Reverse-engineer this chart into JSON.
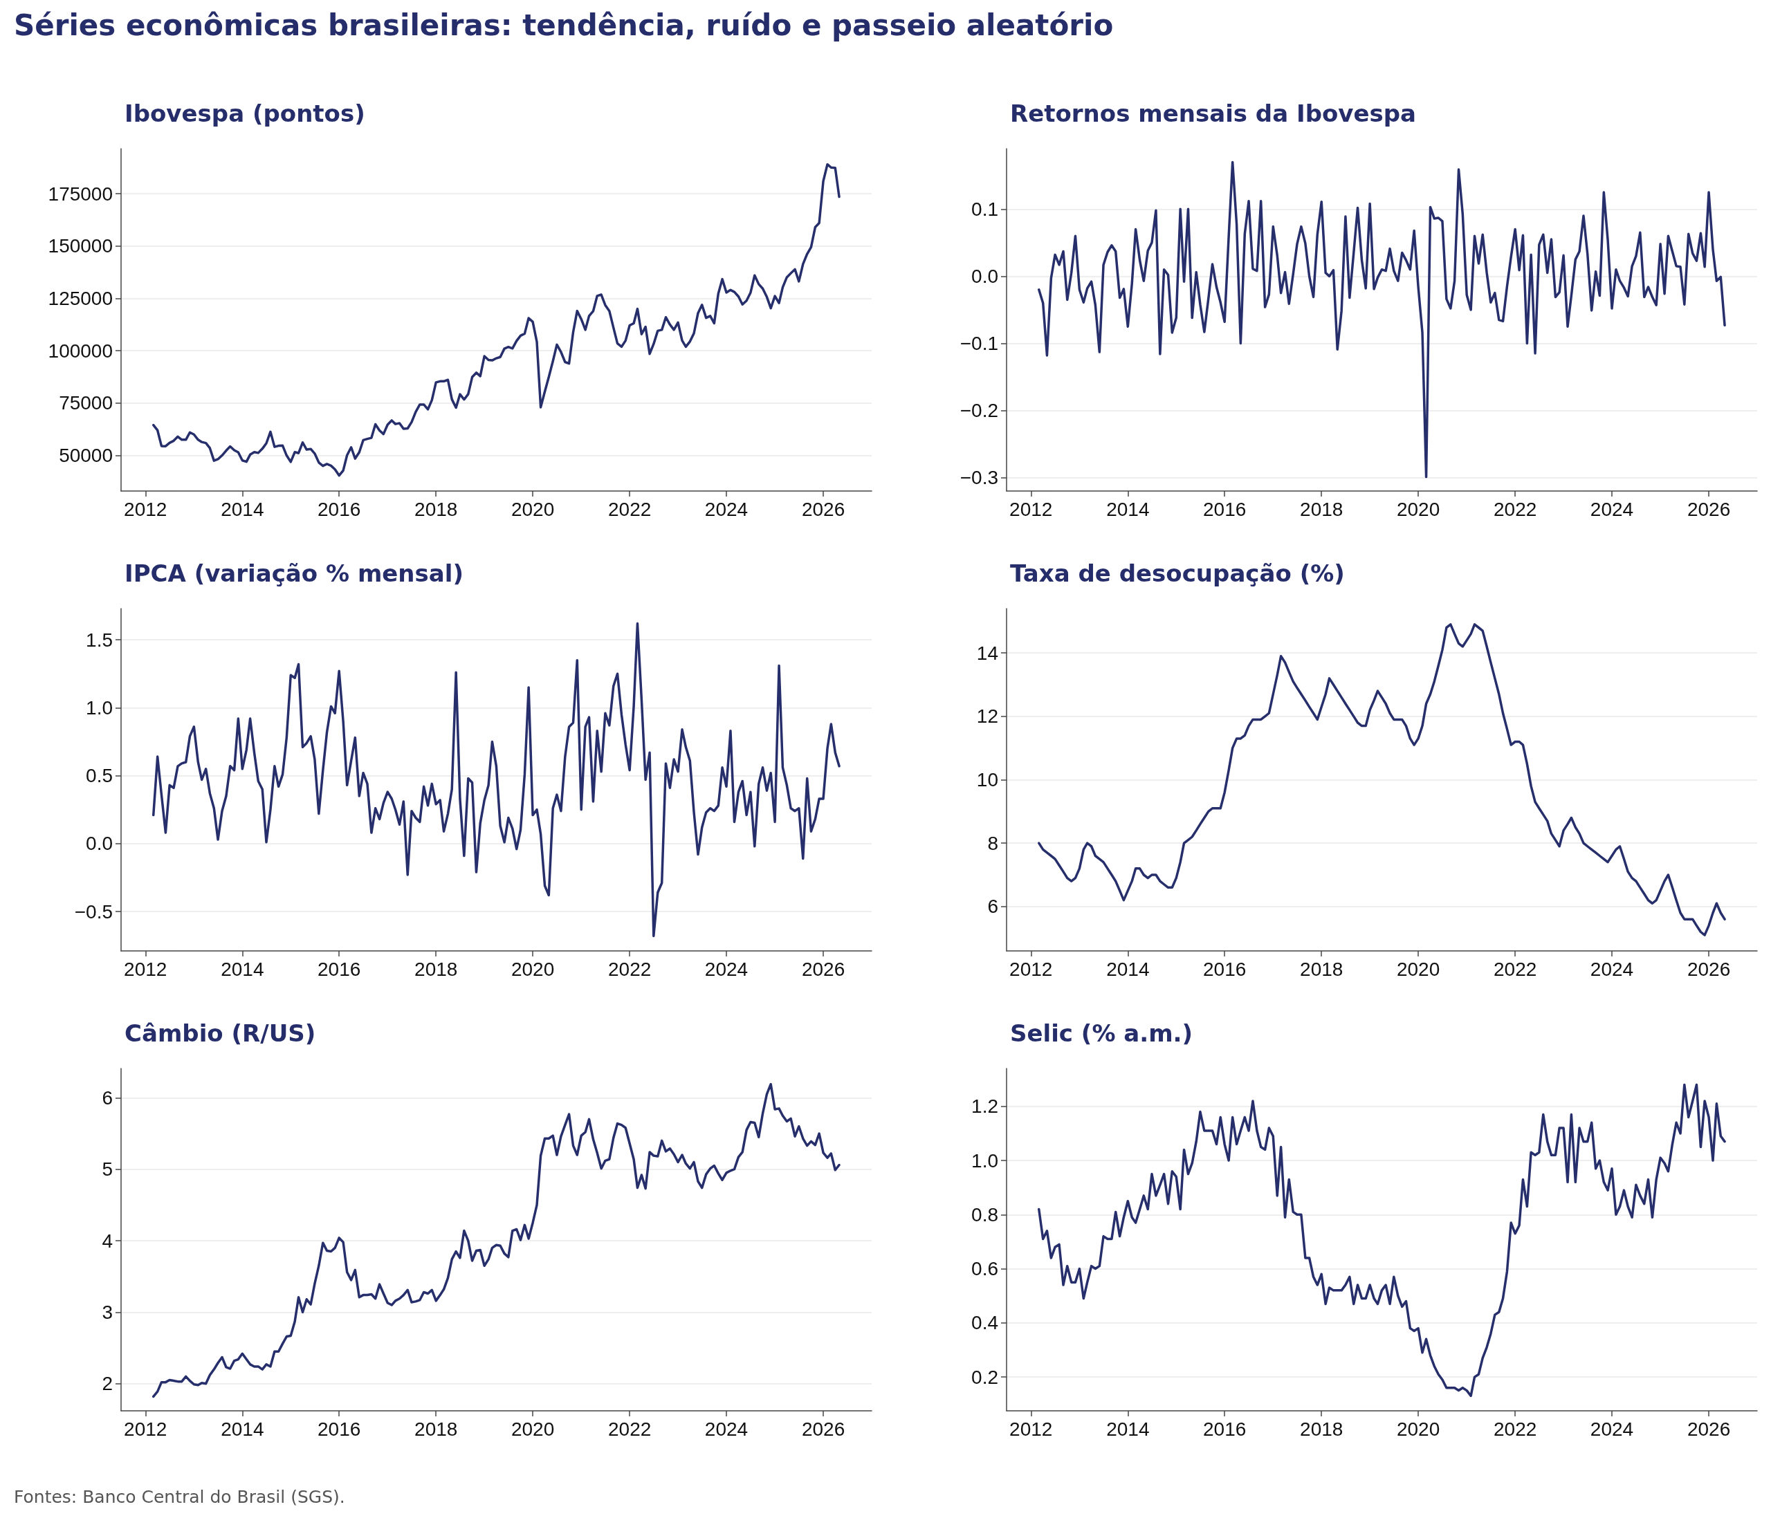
{
  "chart_data": [
    {
      "type": "other",
      "title": "Séries econômicas brasileiras: tendência, ruído e passeio aleatório"
    },
    {
      "type": "line",
      "title": "Ibovespa (pontos)",
      "color": "#262f6b",
      "grid": "y",
      "x": [
        "2012-03",
        "2012-04",
        "2012-05",
        "2012-06",
        "2012-07",
        "2012-08",
        "2012-09",
        "2012-10",
        "2012-11",
        "2012-12",
        "2013-01",
        "2013-02",
        "2013-03",
        "2013-04",
        "2013-05",
        "2013-06",
        "2013-07",
        "2013-08",
        "2013-09",
        "2013-10",
        "2013-11",
        "2013-12",
        "2014-01",
        "2014-02",
        "2014-03",
        "2014-04",
        "2014-05",
        "2014-06",
        "2014-07",
        "2014-08",
        "2014-09",
        "2014-10",
        "2014-11",
        "2014-12",
        "2015-01",
        "2015-02",
        "2015-03",
        "2015-04",
        "2015-05",
        "2015-06",
        "2015-07",
        "2015-08",
        "2015-09",
        "2015-10",
        "2015-11",
        "2015-12",
        "2016-01",
        "2016-02",
        "2016-03",
        "2016-04",
        "2016-05",
        "2016-06",
        "2016-07",
        "2016-08",
        "2016-09",
        "2016-10",
        "2016-11",
        "2016-12",
        "2017-01",
        "2017-02",
        "2017-03",
        "2017-04",
        "2017-05",
        "2017-06",
        "2017-07",
        "2017-08",
        "2017-09",
        "2017-10",
        "2017-11",
        "2017-12",
        "2018-01",
        "2018-02",
        "2018-03",
        "2018-04",
        "2018-05",
        "2018-06",
        "2018-07",
        "2018-08",
        "2018-09",
        "2018-10",
        "2018-11",
        "2018-12",
        "2019-01",
        "2019-02",
        "2019-03",
        "2019-04",
        "2019-05",
        "2019-06",
        "2019-07",
        "2019-08",
        "2019-09",
        "2019-10",
        "2019-11",
        "2019-12",
        "2020-01",
        "2020-02",
        "2020-03",
        "2020-04",
        "2020-05",
        "2020-06",
        "2020-07",
        "2020-08",
        "2020-09",
        "2020-10",
        "2020-11",
        "2020-12",
        "2021-01",
        "2021-02",
        "2021-03",
        "2021-04",
        "2021-05",
        "2021-06",
        "2021-07",
        "2021-08",
        "2021-09",
        "2021-10",
        "2021-11",
        "2021-12",
        "2022-01",
        "2022-02",
        "2022-03",
        "2022-04",
        "2022-05",
        "2022-06",
        "2022-07",
        "2022-08",
        "2022-09",
        "2022-10",
        "2022-11",
        "2022-12",
        "2023-01",
        "2023-02",
        "2023-03",
        "2023-04",
        "2023-05",
        "2023-06",
        "2023-07",
        "2023-08",
        "2023-09",
        "2023-10",
        "2023-11",
        "2023-12",
        "2024-01",
        "2024-02",
        "2024-03",
        "2024-04",
        "2024-05",
        "2024-06",
        "2024-07",
        "2024-08",
        "2024-09",
        "2024-10",
        "2024-11",
        "2024-12",
        "2025-01",
        "2025-02",
        "2025-03",
        "2025-04",
        "2025-05",
        "2025-06",
        "2025-07",
        "2025-08",
        "2025-09",
        "2025-10",
        "2025-11",
        "2025-12",
        "2026-01",
        "2026-02",
        "2026-03",
        "2026-04",
        "2026-05"
      ],
      "values": [
        64500,
        62000,
        54500,
        54400,
        56000,
        57000,
        59000,
        57500,
        57500,
        61000,
        60000,
        57500,
        56400,
        55900,
        53500,
        47500,
        48200,
        50000,
        52300,
        54300,
        52500,
        51500,
        47600,
        47000,
        50400,
        51600,
        51200,
        53200,
        55800,
        61300,
        54100,
        54600,
        54700,
        50000,
        46900,
        51600,
        51100,
        56200,
        52800,
        53100,
        50900,
        46600,
        45000,
        45900,
        45100,
        43300,
        40400,
        42800,
        50100,
        53900,
        48500,
        51500,
        57300,
        57900,
        58400,
        64900,
        61900,
        60200,
        64700,
        66700,
        65000,
        65400,
        62700,
        62900,
        65900,
        70800,
        74300,
        74300,
        72000,
        76400,
        84900,
        85400,
        85400,
        86100,
        76800,
        72800,
        79200,
        76700,
        79300,
        87400,
        89500,
        87900,
        97400,
        95600,
        95400,
        96400,
        97000,
        101000,
        101800,
        101100,
        104700,
        107200,
        108200,
        115600,
        113800,
        104200,
        73000,
        80500,
        87400,
        95000,
        102900,
        99400,
        94600,
        93900,
        108900,
        119000,
        115100,
        110000,
        116600,
        118900,
        126200,
        126800,
        121800,
        119000,
        111000,
        103500,
        101900,
        104800,
        112100,
        113100,
        120000,
        107900,
        111400,
        98500,
        103200,
        109500,
        110000,
        116000,
        112500,
        110000,
        113500,
        104900,
        101900,
        104400,
        108300,
        118000,
        121900,
        115700,
        116600,
        113100,
        127300,
        134200,
        127800,
        129000,
        128100,
        125900,
        122100,
        123900,
        127700,
        136000,
        131800,
        129700,
        125700,
        120300,
        126100,
        122800,
        130300,
        135100,
        137000,
        138900,
        133100,
        141400,
        146200,
        149500,
        159000,
        161000,
        181000,
        189000,
        187500,
        187300,
        173500
      ],
      "xlim": [
        "2011-07",
        "2027-01"
      ],
      "xticks": [
        "2012",
        "2014",
        "2016",
        "2018",
        "2020",
        "2022",
        "2024",
        "2026"
      ],
      "ylim": [
        33000,
        196500
      ],
      "yticks": [
        50000,
        75000,
        100000,
        125000,
        150000,
        175000
      ]
    },
    {
      "type": "line",
      "title": "Retornos mensais da Ibovespa",
      "color": "#262f6b",
      "grid": "y",
      "x": [
        "2012-03",
        "2012-04",
        "2012-05",
        "2012-06",
        "2012-07",
        "2012-08",
        "2012-09",
        "2012-10",
        "2012-11",
        "2012-12",
        "2013-01",
        "2013-02",
        "2013-03",
        "2013-04",
        "2013-05",
        "2013-06",
        "2013-07",
        "2013-08",
        "2013-09",
        "2013-10",
        "2013-11",
        "2013-12",
        "2014-01",
        "2014-02",
        "2014-03",
        "2014-04",
        "2014-05",
        "2014-06",
        "2014-07",
        "2014-08",
        "2014-09",
        "2014-10",
        "2014-11",
        "2014-12",
        "2015-01",
        "2015-02",
        "2015-03",
        "2015-04",
        "2015-05",
        "2015-06",
        "2015-07",
        "2015-08",
        "2015-09",
        "2015-10",
        "2015-11",
        "2015-12",
        "2016-01",
        "2016-02",
        "2016-03",
        "2016-04",
        "2016-05",
        "2016-06",
        "2016-07",
        "2016-08",
        "2016-09",
        "2016-10",
        "2016-11",
        "2016-12",
        "2017-01",
        "2017-02",
        "2017-03",
        "2017-04",
        "2017-05",
        "2017-06",
        "2017-07",
        "2017-08",
        "2017-09",
        "2017-10",
        "2017-11",
        "2017-12",
        "2018-01",
        "2018-02",
        "2018-03",
        "2018-04",
        "2018-05",
        "2018-06",
        "2018-07",
        "2018-08",
        "2018-09",
        "2018-10",
        "2018-11",
        "2018-12",
        "2019-01",
        "2019-02",
        "2019-03",
        "2019-04",
        "2019-05",
        "2019-06",
        "2019-07",
        "2019-08",
        "2019-09",
        "2019-10",
        "2019-11",
        "2019-12",
        "2020-01",
        "2020-02",
        "2020-03",
        "2020-04",
        "2020-05",
        "2020-06",
        "2020-07",
        "2020-08",
        "2020-09",
        "2020-10",
        "2020-11",
        "2020-12",
        "2021-01",
        "2021-02",
        "2021-03",
        "2021-04",
        "2021-05",
        "2021-06",
        "2021-07",
        "2021-08",
        "2021-09",
        "2021-10",
        "2021-11",
        "2021-12",
        "2022-01",
        "2022-02",
        "2022-03",
        "2022-04",
        "2022-05",
        "2022-06",
        "2022-07",
        "2022-08",
        "2022-09",
        "2022-10",
        "2022-11",
        "2022-12",
        "2023-01",
        "2023-02",
        "2023-03",
        "2023-04",
        "2023-05",
        "2023-06",
        "2023-07",
        "2023-08",
        "2023-09",
        "2023-10",
        "2023-11",
        "2023-12",
        "2024-01",
        "2024-02",
        "2024-03",
        "2024-04",
        "2024-05",
        "2024-06",
        "2024-07",
        "2024-08",
        "2024-09",
        "2024-10",
        "2024-11",
        "2024-12",
        "2025-01",
        "2025-02",
        "2025-03",
        "2025-04",
        "2025-05",
        "2025-06",
        "2025-07",
        "2025-08",
        "2025-09",
        "2025-10",
        "2025-11",
        "2025-12",
        "2026-01",
        "2026-02",
        "2026-03",
        "2026-04",
        "2026-05"
      ],
      "values": [
        -0.02,
        -0.04,
        -0.118,
        -0.003,
        0.032,
        0.017,
        0.037,
        -0.035,
        0.005,
        0.06,
        -0.02,
        -0.039,
        -0.018,
        -0.008,
        -0.043,
        -0.113,
        0.017,
        0.036,
        0.046,
        0.037,
        -0.032,
        -0.019,
        -0.075,
        -0.011,
        0.07,
        0.024,
        -0.007,
        0.038,
        0.05,
        0.098,
        -0.116,
        0.01,
        0.002,
        -0.084,
        -0.062,
        0.1,
        -0.008,
        0.1,
        -0.062,
        0.006,
        -0.042,
        -0.083,
        -0.033,
        0.018,
        -0.016,
        -0.039,
        -0.068,
        0.059,
        0.17,
        0.077,
        -0.1,
        0.063,
        0.112,
        0.011,
        0.008,
        0.112,
        -0.046,
        -0.027,
        0.074,
        0.031,
        -0.025,
        0.006,
        -0.041,
        0.003,
        0.048,
        0.074,
        0.049,
        0,
        -0.031,
        0.062,
        0.111,
        0.005,
        0,
        0.009,
        -0.109,
        -0.052,
        0.089,
        -0.032,
        0.035,
        0.102,
        0.024,
        -0.018,
        0.108,
        -0.019,
        -0.002,
        0.01,
        0.008,
        0.041,
        0.008,
        -0.007,
        0.035,
        0.024,
        0.01,
        0.068,
        -0.016,
        -0.084,
        -0.299,
        0.103,
        0.086,
        0.087,
        0.082,
        -0.034,
        -0.048,
        -0.007,
        0.159,
        0.093,
        -0.028,
        -0.05,
        0.06,
        0.019,
        0.062,
        0.005,
        -0.039,
        -0.025,
        -0.065,
        -0.067,
        -0.015,
        0.029,
        0.07,
        0.009,
        0.061,
        -0.1,
        0.032,
        -0.115,
        0.047,
        0.062,
        0.005,
        0.055,
        -0.031,
        -0.024,
        0.031,
        -0.075,
        -0.029,
        0.025,
        0.037,
        0.09,
        0.033,
        -0.051,
        0.007,
        -0.029,
        0.125,
        0.054,
        -0.048,
        0.01,
        -0.007,
        -0.017,
        -0.03,
        0.015,
        0.03,
        0.065,
        -0.031,
        -0.016,
        -0.031,
        -0.043,
        0.048,
        -0.026,
        0.06,
        0.037,
        0.015,
        0.014,
        -0.042,
        0.063,
        0.034,
        0.023,
        0.064,
        0.014,
        0.125,
        0.04,
        -0.007,
        -0.001,
        -0.073
      ],
      "xlim": [
        "2011-07",
        "2027-01"
      ],
      "xticks": [
        "2012",
        "2014",
        "2016",
        "2018",
        "2020",
        "2022",
        "2024",
        "2026"
      ],
      "ylim": [
        -0.32,
        0.19
      ],
      "yticks": [
        {
          "value": -0.3,
          "label": "−0.3"
        },
        {
          "value": -0.2,
          "label": "−0.2"
        },
        {
          "value": -0.1,
          "label": "−0.1"
        },
        {
          "value": 0,
          "label": "0.0"
        },
        0.1
      ]
    },
    {
      "type": "line",
      "title": "IPCA (variação % mensal)",
      "color": "#262f6b",
      "grid": "y",
      "x": [
        "2012-03",
        "2012-04",
        "2012-05",
        "2012-06",
        "2012-07",
        "2012-08",
        "2012-09",
        "2012-10",
        "2012-11",
        "2012-12",
        "2013-01",
        "2013-02",
        "2013-03",
        "2013-04",
        "2013-05",
        "2013-06",
        "2013-07",
        "2013-08",
        "2013-09",
        "2013-10",
        "2013-11",
        "2013-12",
        "2014-01",
        "2014-02",
        "2014-03",
        "2014-04",
        "2014-05",
        "2014-06",
        "2014-07",
        "2014-08",
        "2014-09",
        "2014-10",
        "2014-11",
        "2014-12",
        "2015-01",
        "2015-02",
        "2015-03",
        "2015-04",
        "2015-05",
        "2015-06",
        "2015-07",
        "2015-08",
        "2015-09",
        "2015-10",
        "2015-11",
        "2015-12",
        "2016-01",
        "2016-02",
        "2016-03",
        "2016-04",
        "2016-05",
        "2016-06",
        "2016-07",
        "2016-08",
        "2016-09",
        "2016-10",
        "2016-11",
        "2016-12",
        "2017-01",
        "2017-02",
        "2017-03",
        "2017-04",
        "2017-05",
        "2017-06",
        "2017-07",
        "2017-08",
        "2017-09",
        "2017-10",
        "2017-11",
        "2017-12",
        "2018-01",
        "2018-02",
        "2018-03",
        "2018-04",
        "2018-05",
        "2018-06",
        "2018-07",
        "2018-08",
        "2018-09",
        "2018-10",
        "2018-11",
        "2018-12",
        "2019-01",
        "2019-02",
        "2019-03",
        "2019-04",
        "2019-05",
        "2019-06",
        "2019-07",
        "2019-08",
        "2019-09",
        "2019-10",
        "2019-11",
        "2019-12",
        "2020-01",
        "2020-02",
        "2020-03",
        "2020-04",
        "2020-05",
        "2020-06",
        "2020-07",
        "2020-08",
        "2020-09",
        "2020-10",
        "2020-11",
        "2020-12",
        "2021-01",
        "2021-02",
        "2021-03",
        "2021-04",
        "2021-05",
        "2021-06",
        "2021-07",
        "2021-08",
        "2021-09",
        "2021-10",
        "2021-11",
        "2021-12",
        "2022-01",
        "2022-02",
        "2022-03",
        "2022-04",
        "2022-05",
        "2022-06",
        "2022-07",
        "2022-08",
        "2022-09",
        "2022-10",
        "2022-11",
        "2022-12",
        "2023-01",
        "2023-02",
        "2023-03",
        "2023-04",
        "2023-05",
        "2023-06",
        "2023-07",
        "2023-08",
        "2023-09",
        "2023-10",
        "2023-11",
        "2023-12",
        "2024-01",
        "2024-02",
        "2024-03",
        "2024-04",
        "2024-05",
        "2024-06",
        "2024-07",
        "2024-08",
        "2024-09",
        "2024-10",
        "2024-11",
        "2024-12",
        "2025-01",
        "2025-02",
        "2025-03",
        "2025-04",
        "2025-05",
        "2025-06",
        "2025-07",
        "2025-08",
        "2025-09",
        "2025-10",
        "2025-11",
        "2025-12",
        "2026-01",
        "2026-02",
        "2026-03",
        "2026-04",
        "2026-05"
      ],
      "values": [
        0.21,
        0.64,
        0.36,
        0.08,
        0.43,
        0.41,
        0.57,
        0.59,
        0.6,
        0.79,
        0.86,
        0.6,
        0.47,
        0.55,
        0.37,
        0.26,
        0.03,
        0.24,
        0.35,
        0.57,
        0.54,
        0.92,
        0.55,
        0.69,
        0.92,
        0.67,
        0.46,
        0.4,
        0.01,
        0.25,
        0.57,
        0.42,
        0.51,
        0.78,
        1.24,
        1.22,
        1.32,
        0.71,
        0.74,
        0.79,
        0.62,
        0.22,
        0.54,
        0.82,
        1.01,
        0.96,
        1.27,
        0.9,
        0.43,
        0.61,
        0.78,
        0.35,
        0.52,
        0.44,
        0.08,
        0.26,
        0.18,
        0.3,
        0.38,
        0.33,
        0.25,
        0.14,
        0.31,
        -0.23,
        0.24,
        0.19,
        0.16,
        0.42,
        0.28,
        0.44,
        0.29,
        0.32,
        0.09,
        0.22,
        0.4,
        1.26,
        0.33,
        -0.09,
        0.48,
        0.45,
        -0.21,
        0.15,
        0.32,
        0.43,
        0.75,
        0.57,
        0.13,
        0.01,
        0.19,
        0.11,
        -0.04,
        0.1,
        0.51,
        1.15,
        0.21,
        0.25,
        0.07,
        -0.31,
        -0.38,
        0.26,
        0.36,
        0.24,
        0.64,
        0.86,
        0.89,
        1.35,
        0.25,
        0.86,
        0.93,
        0.31,
        0.83,
        0.53,
        0.96,
        0.87,
        1.16,
        1.25,
        0.95,
        0.73,
        0.54,
        1.01,
        1.62,
        1.06,
        0.47,
        0.67,
        -0.68,
        -0.36,
        -0.29,
        0.59,
        0.41,
        0.62,
        0.53,
        0.84,
        0.71,
        0.61,
        0.23,
        -0.08,
        0.12,
        0.23,
        0.26,
        0.24,
        0.28,
        0.56,
        0.42,
        0.83,
        0.16,
        0.38,
        0.46,
        0.21,
        0.38,
        -0.02,
        0.44,
        0.56,
        0.39,
        0.52,
        0.16,
        1.31,
        0.56,
        0.43,
        0.26,
        0.24,
        0.26,
        -0.11,
        0.48,
        0.09,
        0.18,
        0.33,
        0.33,
        0.7,
        0.88,
        0.67,
        0.57
      ],
      "xlim": [
        "2011-07",
        "2027-01"
      ],
      "xticks": [
        "2012",
        "2014",
        "2016",
        "2018",
        "2020",
        "2022",
        "2024",
        "2026"
      ],
      "ylim": [
        -0.79,
        1.73
      ],
      "yticks": [
        {
          "value": -0.5,
          "label": "−0.5"
        },
        {
          "value": 0,
          "label": "0.0"
        },
        0.5,
        {
          "value": 1,
          "label": "1.0"
        },
        1.5
      ]
    },
    {
      "type": "line",
      "title": "Taxa de desocupação (%)",
      "color": "#262f6b",
      "grid": "y",
      "x": [
        "2012-03",
        "2012-04",
        "2012-05",
        "2012-06",
        "2012-07",
        "2012-08",
        "2012-09",
        "2012-10",
        "2012-11",
        "2012-12",
        "2013-01",
        "2013-02",
        "2013-03",
        "2013-04",
        "2013-05",
        "2013-06",
        "2013-07",
        "2013-08",
        "2013-09",
        "2013-10",
        "2013-11",
        "2013-12",
        "2014-01",
        "2014-02",
        "2014-03",
        "2014-04",
        "2014-05",
        "2014-06",
        "2014-07",
        "2014-08",
        "2014-09",
        "2014-10",
        "2014-11",
        "2014-12",
        "2015-01",
        "2015-02",
        "2015-03",
        "2015-04",
        "2015-05",
        "2015-06",
        "2015-07",
        "2015-08",
        "2015-09",
        "2015-10",
        "2015-11",
        "2015-12",
        "2016-01",
        "2016-02",
        "2016-03",
        "2016-04",
        "2016-05",
        "2016-06",
        "2016-07",
        "2016-08",
        "2016-09",
        "2016-10",
        "2016-11",
        "2016-12",
        "2017-01",
        "2017-02",
        "2017-03",
        "2017-04",
        "2017-05",
        "2017-06",
        "2017-07",
        "2017-08",
        "2017-09",
        "2017-10",
        "2017-11",
        "2017-12",
        "2018-01",
        "2018-02",
        "2018-03",
        "2018-04",
        "2018-05",
        "2018-06",
        "2018-07",
        "2018-08",
        "2018-09",
        "2018-10",
        "2018-11",
        "2018-12",
        "2019-01",
        "2019-02",
        "2019-03",
        "2019-04",
        "2019-05",
        "2019-06",
        "2019-07",
        "2019-08",
        "2019-09",
        "2019-10",
        "2019-11",
        "2019-12",
        "2020-01",
        "2020-02",
        "2020-03",
        "2020-04",
        "2020-05",
        "2020-06",
        "2020-07",
        "2020-08",
        "2020-09",
        "2020-10",
        "2020-11",
        "2020-12",
        "2021-01",
        "2021-02",
        "2021-03",
        "2021-04",
        "2021-05",
        "2021-06",
        "2021-07",
        "2021-08",
        "2021-09",
        "2021-10",
        "2021-11",
        "2021-12",
        "2022-01",
        "2022-02",
        "2022-03",
        "2022-04",
        "2022-05",
        "2022-06",
        "2022-07",
        "2022-08",
        "2022-09",
        "2022-10",
        "2022-11",
        "2022-12",
        "2023-01",
        "2023-02",
        "2023-03",
        "2023-04",
        "2023-05",
        "2023-06",
        "2023-07",
        "2023-08",
        "2023-09",
        "2023-10",
        "2023-11",
        "2023-12",
        "2024-01",
        "2024-02",
        "2024-03",
        "2024-04",
        "2024-05",
        "2024-06",
        "2024-07",
        "2024-08",
        "2024-09",
        "2024-10",
        "2024-11",
        "2024-12",
        "2025-01",
        "2025-02",
        "2025-03",
        "2025-04",
        "2025-05",
        "2025-06",
        "2025-07",
        "2025-08",
        "2025-09",
        "2025-10",
        "2025-11",
        "2025-12",
        "2026-01",
        "2026-02",
        "2026-03",
        "2026-04",
        "2026-05"
      ],
      "values": [
        8.0,
        7.8,
        7.7,
        7.6,
        7.5,
        7.3,
        7.1,
        6.9,
        6.8,
        6.9,
        7.2,
        7.8,
        8.0,
        7.9,
        7.6,
        7.5,
        7.4,
        7.2,
        7.0,
        6.8,
        6.5,
        6.2,
        6.5,
        6.8,
        7.2,
        7.2,
        7.0,
        6.9,
        7.0,
        7.0,
        6.8,
        6.7,
        6.6,
        6.6,
        6.9,
        7.4,
        8.0,
        8.1,
        8.2,
        8.4,
        8.6,
        8.8,
        9.0,
        9.1,
        9.1,
        9.1,
        9.6,
        10.3,
        11.0,
        11.3,
        11.3,
        11.4,
        11.7,
        11.9,
        11.9,
        11.9,
        12.0,
        12.1,
        12.7,
        13.3,
        13.9,
        13.7,
        13.4,
        13.1,
        12.9,
        12.7,
        12.5,
        12.3,
        12.1,
        11.9,
        12.3,
        12.7,
        13.2,
        13.0,
        12.8,
        12.6,
        12.4,
        12.2,
        12.0,
        11.8,
        11.7,
        11.7,
        12.2,
        12.5,
        12.8,
        12.6,
        12.4,
        12.1,
        11.9,
        11.9,
        11.9,
        11.7,
        11.3,
        11.1,
        11.3,
        11.7,
        12.4,
        12.7,
        13.1,
        13.6,
        14.1,
        14.8,
        14.9,
        14.6,
        14.3,
        14.2,
        14.4,
        14.6,
        14.9,
        14.8,
        14.7,
        14.2,
        13.7,
        13.2,
        12.7,
        12.1,
        11.6,
        11.1,
        11.2,
        11.2,
        11.1,
        10.5,
        9.8,
        9.3,
        9.1,
        8.9,
        8.7,
        8.3,
        8.1,
        7.9,
        8.4,
        8.6,
        8.8,
        8.5,
        8.3,
        8.0,
        7.9,
        7.8,
        7.7,
        7.6,
        7.5,
        7.4,
        7.6,
        7.8,
        7.9,
        7.5,
        7.1,
        6.9,
        6.8,
        6.6,
        6.4,
        6.2,
        6.1,
        6.2,
        6.5,
        6.8,
        7.0,
        6.6,
        6.2,
        5.8,
        5.6,
        5.6,
        5.6,
        5.4,
        5.2,
        5.1,
        5.4,
        5.8,
        6.1,
        5.8,
        5.6
      ],
      "xlim": [
        "2011-07",
        "2027-01"
      ],
      "xticks": [
        "2012",
        "2014",
        "2016",
        "2018",
        "2020",
        "2022",
        "2024",
        "2026"
      ],
      "ylim": [
        4.6,
        15.4
      ],
      "yticks": [
        6,
        8,
        10,
        12,
        14
      ]
    },
    {
      "type": "line",
      "title": "Câmbio (R/US)",
      "color": "#262f6b",
      "grid": "y",
      "x": [
        "2012-03",
        "2012-04",
        "2012-05",
        "2012-06",
        "2012-07",
        "2012-08",
        "2012-09",
        "2012-10",
        "2012-11",
        "2012-12",
        "2013-01",
        "2013-02",
        "2013-03",
        "2013-04",
        "2013-05",
        "2013-06",
        "2013-07",
        "2013-08",
        "2013-09",
        "2013-10",
        "2013-11",
        "2013-12",
        "2014-01",
        "2014-02",
        "2014-03",
        "2014-04",
        "2014-05",
        "2014-06",
        "2014-07",
        "2014-08",
        "2014-09",
        "2014-10",
        "2014-11",
        "2014-12",
        "2015-01",
        "2015-02",
        "2015-03",
        "2015-04",
        "2015-05",
        "2015-06",
        "2015-07",
        "2015-08",
        "2015-09",
        "2015-10",
        "2015-11",
        "2015-12",
        "2016-01",
        "2016-02",
        "2016-03",
        "2016-04",
        "2016-05",
        "2016-06",
        "2016-07",
        "2016-08",
        "2016-09",
        "2016-10",
        "2016-11",
        "2016-12",
        "2017-01",
        "2017-02",
        "2017-03",
        "2017-04",
        "2017-05",
        "2017-06",
        "2017-07",
        "2017-08",
        "2017-09",
        "2017-10",
        "2017-11",
        "2017-12",
        "2018-01",
        "2018-02",
        "2018-03",
        "2018-04",
        "2018-05",
        "2018-06",
        "2018-07",
        "2018-08",
        "2018-09",
        "2018-10",
        "2018-11",
        "2018-12",
        "2019-01",
        "2019-02",
        "2019-03",
        "2019-04",
        "2019-05",
        "2019-06",
        "2019-07",
        "2019-08",
        "2019-09",
        "2019-10",
        "2019-11",
        "2019-12",
        "2020-01",
        "2020-02",
        "2020-03",
        "2020-04",
        "2020-05",
        "2020-06",
        "2020-07",
        "2020-08",
        "2020-09",
        "2020-10",
        "2020-11",
        "2020-12",
        "2021-01",
        "2021-02",
        "2021-03",
        "2021-04",
        "2021-05",
        "2021-06",
        "2021-07",
        "2021-08",
        "2021-09",
        "2021-10",
        "2021-11",
        "2021-12",
        "2022-01",
        "2022-02",
        "2022-03",
        "2022-04",
        "2022-05",
        "2022-06",
        "2022-07",
        "2022-08",
        "2022-09",
        "2022-10",
        "2022-11",
        "2022-12",
        "2023-01",
        "2023-02",
        "2023-03",
        "2023-04",
        "2023-05",
        "2023-06",
        "2023-07",
        "2023-08",
        "2023-09",
        "2023-10",
        "2023-11",
        "2023-12",
        "2024-01",
        "2024-02",
        "2024-03",
        "2024-04",
        "2024-05",
        "2024-06",
        "2024-07",
        "2024-08",
        "2024-09",
        "2024-10",
        "2024-11",
        "2024-12",
        "2025-01",
        "2025-02",
        "2025-03",
        "2025-04",
        "2025-05",
        "2025-06",
        "2025-07",
        "2025-08",
        "2025-09",
        "2025-10",
        "2025-11",
        "2025-12",
        "2026-01",
        "2026-02",
        "2026-03",
        "2026-04",
        "2026-05"
      ],
      "values": [
        1.82,
        1.89,
        2.02,
        2.02,
        2.05,
        2.04,
        2.03,
        2.03,
        2.1,
        2.04,
        1.99,
        1.98,
        2.01,
        2.0,
        2.12,
        2.2,
        2.29,
        2.37,
        2.23,
        2.21,
        2.32,
        2.34,
        2.42,
        2.34,
        2.27,
        2.24,
        2.24,
        2.2,
        2.27,
        2.24,
        2.45,
        2.45,
        2.56,
        2.66,
        2.67,
        2.87,
        3.21,
        3.0,
        3.18,
        3.11,
        3.4,
        3.65,
        3.97,
        3.86,
        3.85,
        3.9,
        4.04,
        3.98,
        3.56,
        3.45,
        3.59,
        3.21,
        3.24,
        3.24,
        3.25,
        3.19,
        3.39,
        3.26,
        3.13,
        3.1,
        3.16,
        3.19,
        3.24,
        3.31,
        3.14,
        3.15,
        3.17,
        3.28,
        3.26,
        3.31,
        3.16,
        3.24,
        3.32,
        3.48,
        3.74,
        3.85,
        3.76,
        4.14,
        4.0,
        3.72,
        3.86,
        3.87,
        3.65,
        3.74,
        3.9,
        3.94,
        3.93,
        3.82,
        3.77,
        4.14,
        4.16,
        4.01,
        4.22,
        4.03,
        4.25,
        4.5,
        5.19,
        5.43,
        5.43,
        5.47,
        5.2,
        5.46,
        5.62,
        5.77,
        5.33,
        5.2,
        5.47,
        5.52,
        5.7,
        5.42,
        5.23,
        5.01,
        5.12,
        5.14,
        5.44,
        5.64,
        5.62,
        5.58,
        5.36,
        5.14,
        4.74,
        4.92,
        4.73,
        5.24,
        5.19,
        5.18,
        5.4,
        5.25,
        5.29,
        5.21,
        5.1,
        5.2,
        5.08,
        5.01,
        5.1,
        4.83,
        4.74,
        4.93,
        5.01,
        5.05,
        4.94,
        4.85,
        4.95,
        4.98,
        5.0,
        5.17,
        5.24,
        5.55,
        5.66,
        5.65,
        5.45,
        5.78,
        6.05,
        6.19,
        5.84,
        5.85,
        5.75,
        5.67,
        5.71,
        5.46,
        5.6,
        5.43,
        5.33,
        5.39,
        5.34,
        5.5,
        5.23,
        5.16,
        5.22,
        4.99,
        5.06
      ],
      "xlim": [
        "2011-07",
        "2027-01"
      ],
      "xticks": [
        "2012",
        "2014",
        "2016",
        "2018",
        "2020",
        "2022",
        "2024",
        "2026"
      ],
      "ylim": [
        1.62,
        6.41
      ],
      "yticks": [
        2,
        3,
        4,
        5,
        6
      ]
    },
    {
      "type": "line",
      "title": "Selic (% a.m.)",
      "color": "#262f6b",
      "grid": "y",
      "x": [
        "2012-03",
        "2012-04",
        "2012-05",
        "2012-06",
        "2012-07",
        "2012-08",
        "2012-09",
        "2012-10",
        "2012-11",
        "2012-12",
        "2013-01",
        "2013-02",
        "2013-03",
        "2013-04",
        "2013-05",
        "2013-06",
        "2013-07",
        "2013-08",
        "2013-09",
        "2013-10",
        "2013-11",
        "2013-12",
        "2014-01",
        "2014-02",
        "2014-03",
        "2014-04",
        "2014-05",
        "2014-06",
        "2014-07",
        "2014-08",
        "2014-09",
        "2014-10",
        "2014-11",
        "2014-12",
        "2015-01",
        "2015-02",
        "2015-03",
        "2015-04",
        "2015-05",
        "2015-06",
        "2015-07",
        "2015-08",
        "2015-09",
        "2015-10",
        "2015-11",
        "2015-12",
        "2016-01",
        "2016-02",
        "2016-03",
        "2016-04",
        "2016-05",
        "2016-06",
        "2016-07",
        "2016-08",
        "2016-09",
        "2016-10",
        "2016-11",
        "2016-12",
        "2017-01",
        "2017-02",
        "2017-03",
        "2017-04",
        "2017-05",
        "2017-06",
        "2017-07",
        "2017-08",
        "2017-09",
        "2017-10",
        "2017-11",
        "2017-12",
        "2018-01",
        "2018-02",
        "2018-03",
        "2018-04",
        "2018-05",
        "2018-06",
        "2018-07",
        "2018-08",
        "2018-09",
        "2018-10",
        "2018-11",
        "2018-12",
        "2019-01",
        "2019-02",
        "2019-03",
        "2019-04",
        "2019-05",
        "2019-06",
        "2019-07",
        "2019-08",
        "2019-09",
        "2019-10",
        "2019-11",
        "2019-12",
        "2020-01",
        "2020-02",
        "2020-03",
        "2020-04",
        "2020-05",
        "2020-06",
        "2020-07",
        "2020-08",
        "2020-09",
        "2020-10",
        "2020-11",
        "2020-12",
        "2021-01",
        "2021-02",
        "2021-03",
        "2021-04",
        "2021-05",
        "2021-06",
        "2021-07",
        "2021-08",
        "2021-09",
        "2021-10",
        "2021-11",
        "2021-12",
        "2022-01",
        "2022-02",
        "2022-03",
        "2022-04",
        "2022-05",
        "2022-06",
        "2022-07",
        "2022-08",
        "2022-09",
        "2022-10",
        "2022-11",
        "2022-12",
        "2023-01",
        "2023-02",
        "2023-03",
        "2023-04",
        "2023-05",
        "2023-06",
        "2023-07",
        "2023-08",
        "2023-09",
        "2023-10",
        "2023-11",
        "2023-12",
        "2024-01",
        "2024-02",
        "2024-03",
        "2024-04",
        "2024-05",
        "2024-06",
        "2024-07",
        "2024-08",
        "2024-09",
        "2024-10",
        "2024-11",
        "2024-12",
        "2025-01",
        "2025-02",
        "2025-03",
        "2025-04",
        "2025-05",
        "2025-06",
        "2025-07",
        "2025-08",
        "2025-09",
        "2025-10",
        "2025-11",
        "2025-12",
        "2026-01",
        "2026-02",
        "2026-03",
        "2026-04",
        "2026-05"
      ],
      "values": [
        0.82,
        0.71,
        0.74,
        0.64,
        0.68,
        0.69,
        0.54,
        0.61,
        0.55,
        0.55,
        0.6,
        0.49,
        0.55,
        0.61,
        0.6,
        0.61,
        0.72,
        0.71,
        0.71,
        0.81,
        0.72,
        0.79,
        0.85,
        0.79,
        0.77,
        0.82,
        0.87,
        0.82,
        0.95,
        0.87,
        0.91,
        0.95,
        0.84,
        0.96,
        0.94,
        0.82,
        1.04,
        0.95,
        0.99,
        1.07,
        1.18,
        1.11,
        1.11,
        1.11,
        1.06,
        1.16,
        1.06,
        1.0,
        1.16,
        1.06,
        1.11,
        1.16,
        1.11,
        1.22,
        1.11,
        1.05,
        1.04,
        1.12,
        1.09,
        0.87,
        1.05,
        0.79,
        0.93,
        0.81,
        0.8,
        0.8,
        0.64,
        0.64,
        0.57,
        0.54,
        0.58,
        0.47,
        0.53,
        0.52,
        0.52,
        0.52,
        0.54,
        0.57,
        0.47,
        0.54,
        0.49,
        0.49,
        0.54,
        0.49,
        0.47,
        0.52,
        0.54,
        0.47,
        0.57,
        0.5,
        0.46,
        0.48,
        0.38,
        0.37,
        0.38,
        0.29,
        0.34,
        0.28,
        0.24,
        0.21,
        0.19,
        0.16,
        0.16,
        0.16,
        0.15,
        0.16,
        0.15,
        0.13,
        0.2,
        0.21,
        0.27,
        0.31,
        0.36,
        0.43,
        0.44,
        0.49,
        0.59,
        0.77,
        0.73,
        0.76,
        0.93,
        0.83,
        1.03,
        1.02,
        1.03,
        1.17,
        1.07,
        1.02,
        1.02,
        1.12,
        1.12,
        0.92,
        1.17,
        0.92,
        1.12,
        1.07,
        1.07,
        1.14,
        0.97,
        1.0,
        0.92,
        0.89,
        0.97,
        0.8,
        0.83,
        0.89,
        0.83,
        0.79,
        0.91,
        0.87,
        0.84,
        0.93,
        0.79,
        0.93,
        1.01,
        0.99,
        0.96,
        1.06,
        1.14,
        1.1,
        1.28,
        1.16,
        1.22,
        1.28,
        1.05,
        1.22,
        1.16,
        1.0,
        1.21,
        1.09,
        1.07
      ],
      "xlim": [
        "2011-07",
        "2027-01"
      ],
      "xticks": [
        "2012",
        "2014",
        "2016",
        "2018",
        "2020",
        "2022",
        "2024",
        "2026"
      ],
      "ylim": [
        0.075,
        1.34
      ],
      "yticks": [
        0.2,
        0.4,
        0.6,
        0.8,
        {
          "value": 1,
          "label": "1.0"
        },
        1.2
      ]
    },
    {
      "type": "other",
      "annotations": [
        "Fontes: Banco Central do Brasil (SGS)."
      ]
    }
  ]
}
